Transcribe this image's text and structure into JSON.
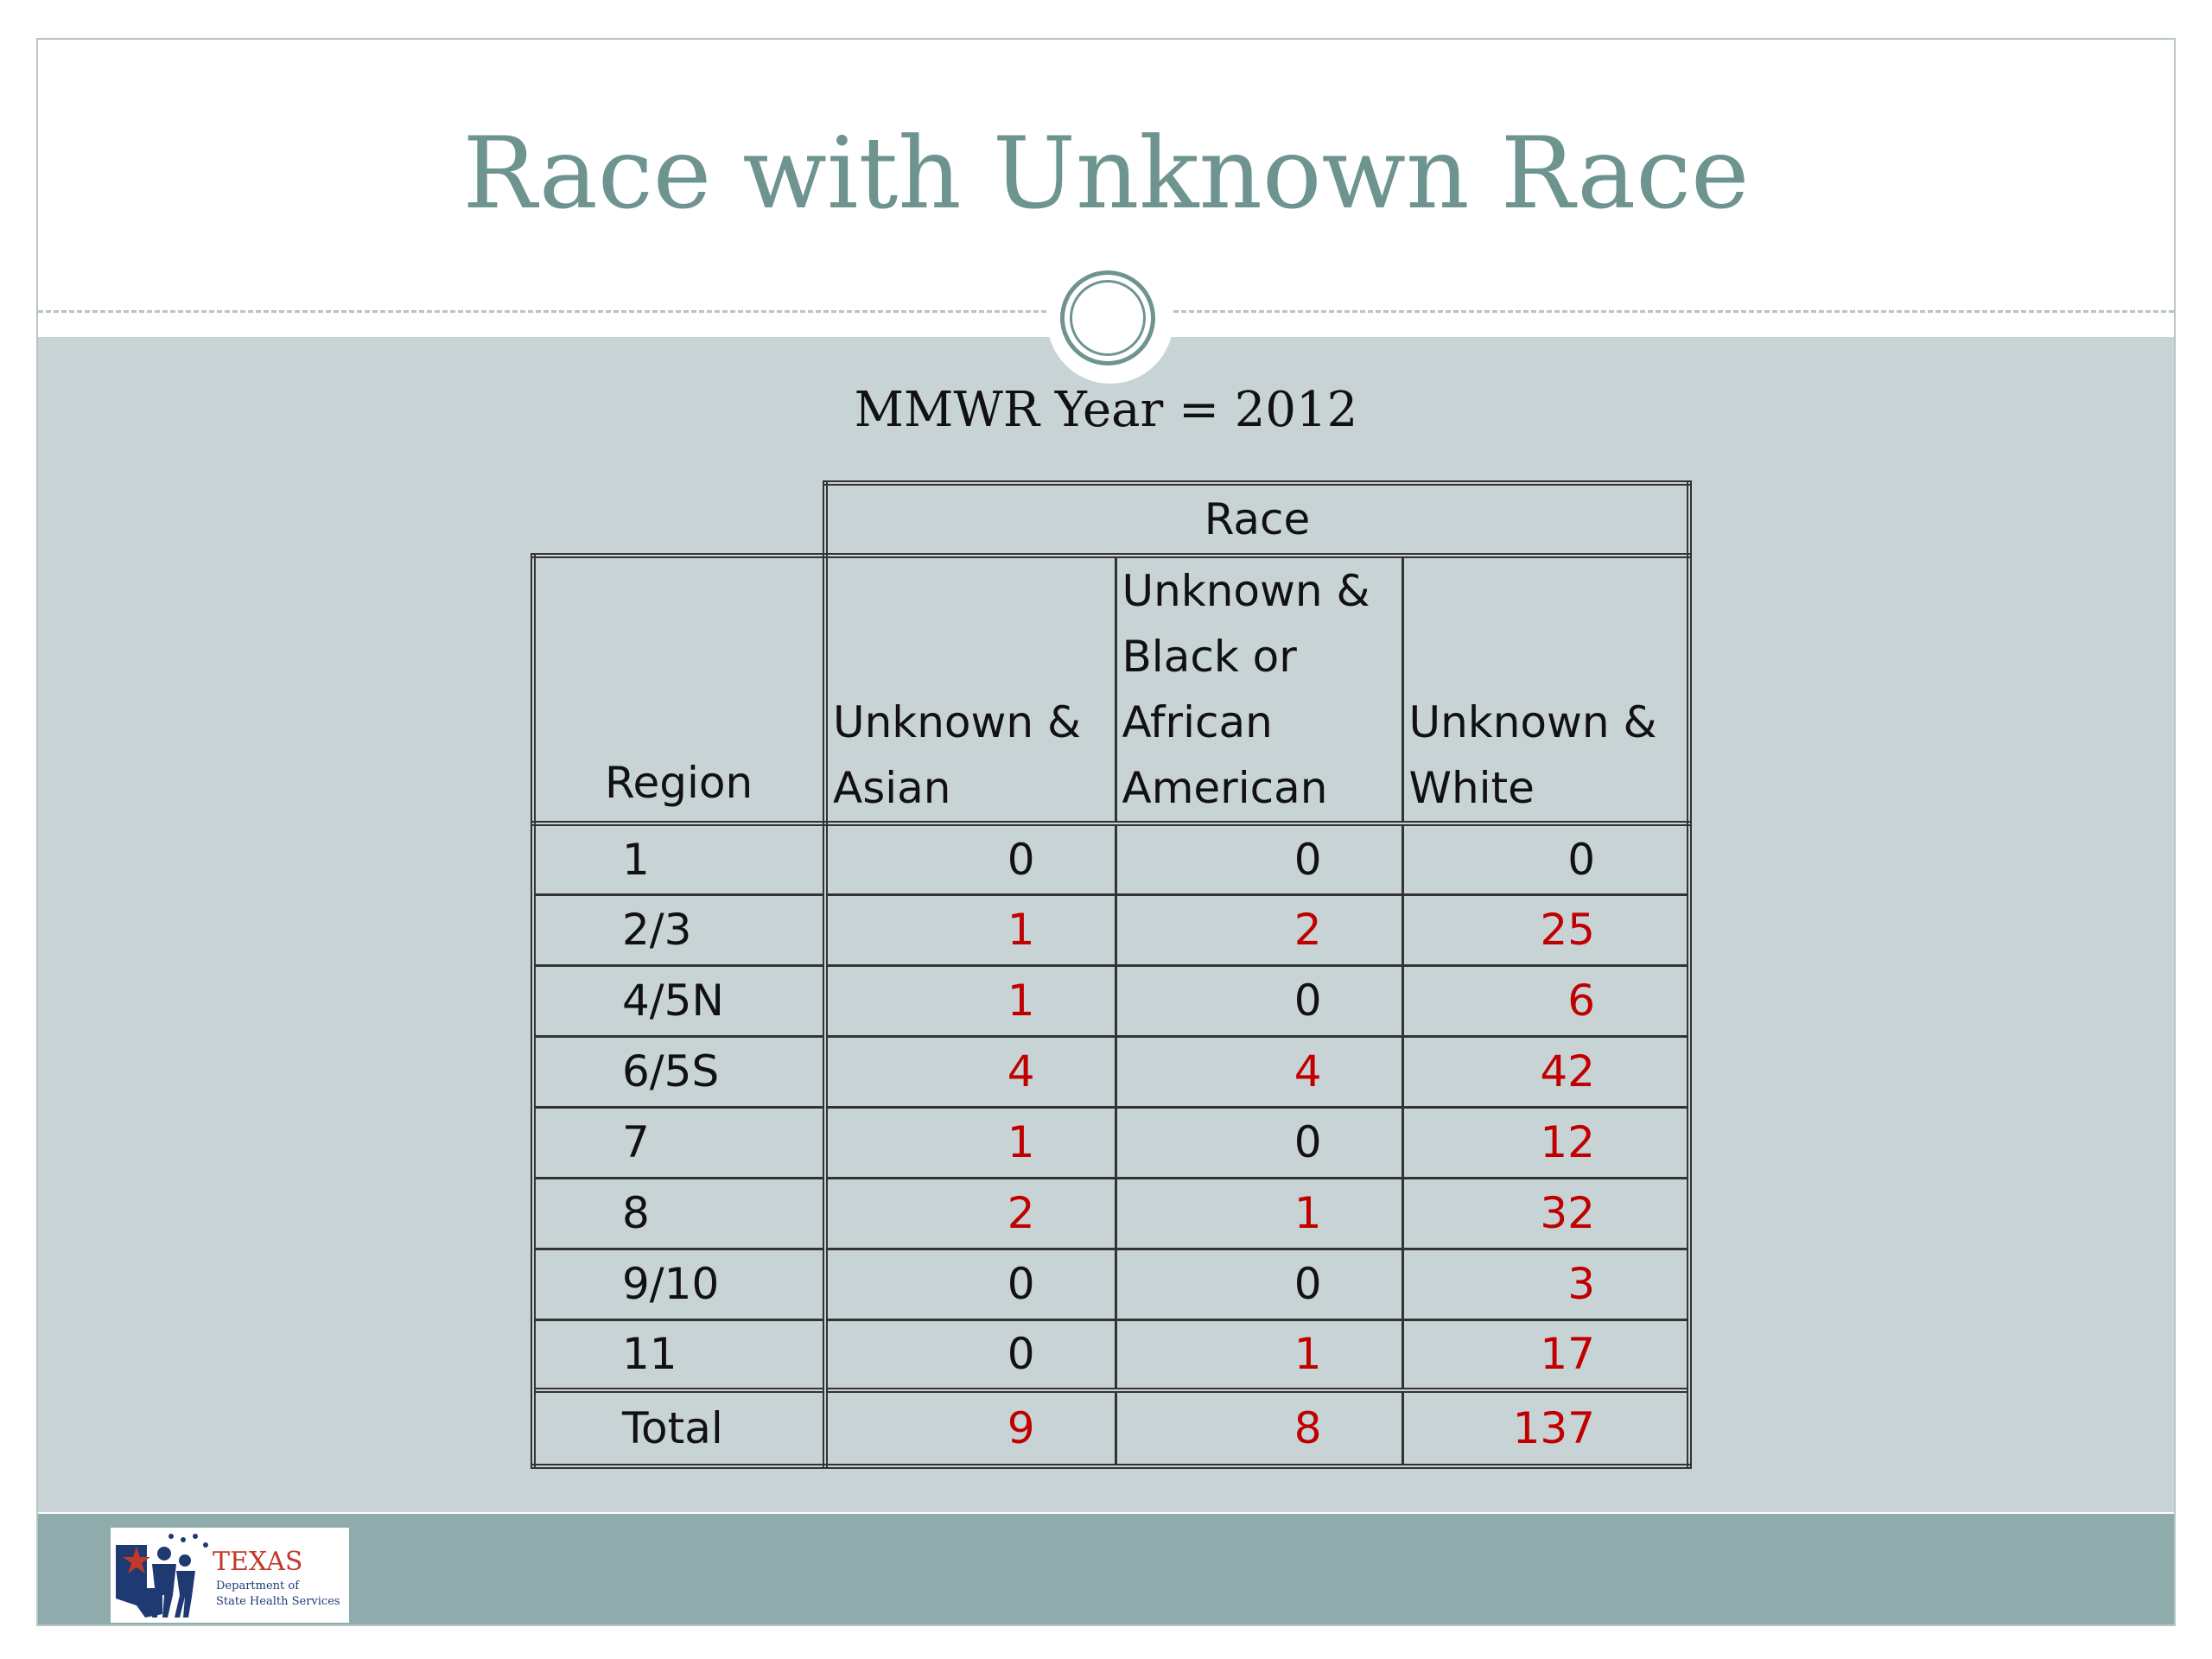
{
  "slide": {
    "title": "Race with Unknown Race",
    "subtitle": "MMWR Year = 2012"
  },
  "table": {
    "group_header": "Race",
    "row_header": "Region",
    "columns": [
      "Unknown & Asian",
      "Unknown & Black or African American",
      "Unknown & White"
    ],
    "rows": [
      {
        "region": "1",
        "values": [
          "0",
          "0",
          "0"
        ]
      },
      {
        "region": "2/3",
        "values": [
          "1",
          "2",
          "25"
        ]
      },
      {
        "region": "4/5N",
        "values": [
          "1",
          "0",
          "6"
        ]
      },
      {
        "region": "6/5S",
        "values": [
          "4",
          "4",
          "42"
        ]
      },
      {
        "region": "7",
        "values": [
          "1",
          "0",
          "12"
        ]
      },
      {
        "region": "8",
        "values": [
          "2",
          "1",
          "32"
        ]
      },
      {
        "region": "9/10",
        "values": [
          "0",
          "0",
          "3"
        ]
      },
      {
        "region": "11",
        "values": [
          "0",
          "1",
          "17"
        ]
      },
      {
        "region": "Total",
        "values": [
          "9",
          "8",
          "137"
        ]
      }
    ]
  },
  "logo": {
    "name": "TEXAS",
    "line1": "Department of",
    "line2": "State Health Services"
  },
  "colors": {
    "title": "#6e9490",
    "content_background": "#c8d3d6",
    "footer_bar": "#8fabab",
    "nonzero_value": "#c00000"
  }
}
